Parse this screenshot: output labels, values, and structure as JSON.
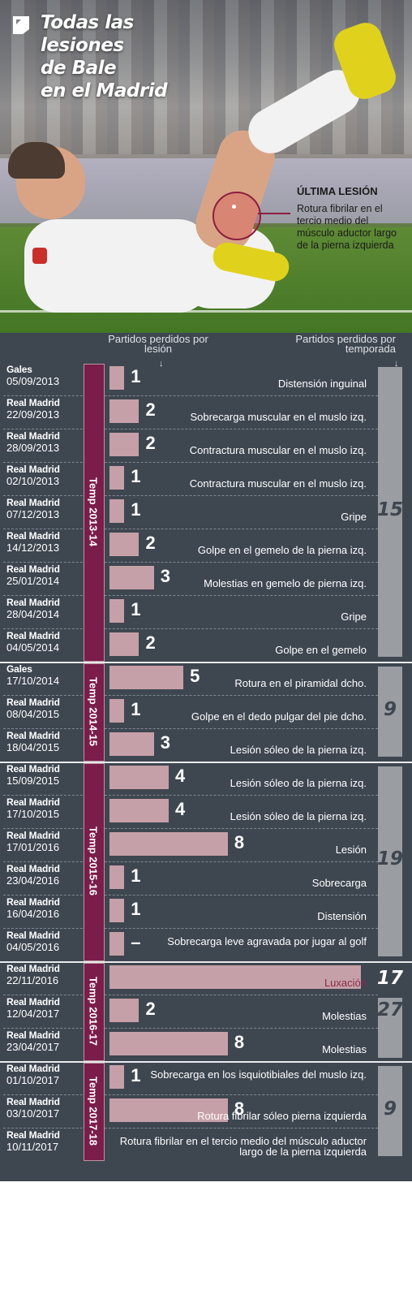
{
  "title": {
    "line1": "Todas las",
    "line2": "lesiones",
    "line3": "de Bale",
    "line4": "en el Madrid"
  },
  "last_injury": {
    "label": "ÚLTIMA LESIÓN",
    "description": "Rotura fibrilar en el tercio medio del músculo aductor largo de la pierna izquierda"
  },
  "headers": {
    "per_injury": "Partidos perdidos por lesión",
    "per_season": "Partidos perdidos por temporada",
    "arrow": "↓"
  },
  "colors": {
    "panel": "#3e4650",
    "bar": "#c6a0a8",
    "season_label_bg": "#7a1d4b",
    "season_total_bg": "#9a9da1"
  },
  "chart_data": {
    "type": "bar",
    "orientation": "horizontal",
    "title": "Todas las lesiones de Bale en el Madrid",
    "xlabel": "Partidos perdidos por lesión",
    "rows": [
      {
        "team": "Gales",
        "date": "05/09/2013",
        "value": 1,
        "label": "1",
        "injury": "Distensión inguinal",
        "season": "Temp 2013-14"
      },
      {
        "team": "Real Madrid",
        "date": "22/09/2013",
        "value": 2,
        "label": "2",
        "injury": "Sobrecarga muscular en el muslo izq.",
        "season": "Temp 2013-14"
      },
      {
        "team": "Real Madrid",
        "date": "28/09/2013",
        "value": 2,
        "label": "2",
        "injury": "Contractura muscular en el muslo izq.",
        "season": "Temp 2013-14"
      },
      {
        "team": "Real Madrid",
        "date": "02/10/2013",
        "value": 1,
        "label": "1",
        "injury": "Contractura muscular en el muslo izq.",
        "season": "Temp 2013-14"
      },
      {
        "team": "Real Madrid",
        "date": "07/12/2013",
        "value": 1,
        "label": "1",
        "injury": "Gripe",
        "season": "Temp 2013-14"
      },
      {
        "team": "Real Madrid",
        "date": "14/12/2013",
        "value": 2,
        "label": "2",
        "injury": "Golpe en el gemelo de la pierna izq.",
        "season": "Temp 2013-14"
      },
      {
        "team": "Real Madrid",
        "date": "25/01/2014",
        "value": 3,
        "label": "3",
        "injury": "Molestias en gemelo de pierna izq.",
        "season": "Temp 2013-14"
      },
      {
        "team": "Real Madrid",
        "date": "28/04/2014",
        "value": 1,
        "label": "1",
        "injury": "Gripe",
        "season": "Temp 2013-14"
      },
      {
        "team": "Real Madrid",
        "date": "04/05/2014",
        "value": 2,
        "label": "2",
        "injury": "Golpe en el gemelo",
        "season": "Temp 2013-14"
      },
      {
        "team": "Gales",
        "date": "17/10/2014",
        "value": 5,
        "label": "5",
        "injury": "Rotura en el piramidal dcho.",
        "season": "Temp 2014-15"
      },
      {
        "team": "Real Madrid",
        "date": "08/04/2015",
        "value": 1,
        "label": "1",
        "injury": "Golpe en el dedo pulgar del pie dcho.",
        "season": "Temp 2014-15"
      },
      {
        "team": "Real Madrid",
        "date": "18/04/2015",
        "value": 3,
        "label": "3",
        "injury": "Lesión sóleo de la pierna izq.",
        "season": "Temp 2014-15"
      },
      {
        "team": "Real Madrid",
        "date": "15/09/2015",
        "value": 4,
        "label": "4",
        "injury": "Lesión sóleo de la pierna izq.",
        "season": "Temp 2015-16"
      },
      {
        "team": "Real Madrid",
        "date": "17/10/2015",
        "value": 4,
        "label": "4",
        "injury": "Lesión sóleo de la pierna izq.",
        "season": "Temp 2015-16"
      },
      {
        "team": "Real Madrid",
        "date": "17/01/2016",
        "value": 8,
        "label": "8",
        "injury": "Lesión",
        "season": "Temp 2015-16"
      },
      {
        "team": "Real Madrid",
        "date": "23/04/2016",
        "value": 1,
        "label": "1",
        "injury": "Sobrecarga",
        "season": "Temp 2015-16"
      },
      {
        "team": "Real Madrid",
        "date": "16/04/2016",
        "value": 1,
        "label": "1",
        "injury": "Distensión",
        "season": "Temp 2015-16"
      },
      {
        "team": "Real Madrid",
        "date": "04/05/2016",
        "value": 1,
        "label": "–",
        "injury": "Sobrecarga leve agravada por jugar al golf",
        "season": "Temp 2015-16"
      },
      {
        "team": "Real Madrid",
        "date": "22/11/2016",
        "value": 17,
        "label": "",
        "injury": "Luxación",
        "season": "Temp 2016-17"
      },
      {
        "team": "Real Madrid",
        "date": "12/04/2017",
        "value": 2,
        "label": "2",
        "injury": "Molestias",
        "season": "Temp 2016-17"
      },
      {
        "team": "Real Madrid",
        "date": "23/04/2017",
        "value": 8,
        "label": "8",
        "injury": "Molestias",
        "season": "Temp 2016-17"
      },
      {
        "team": "Real Madrid",
        "date": "01/10/2017",
        "value": 1,
        "label": "1",
        "injury": "Sobrecarga en los isquiotibiales del muslo izq.",
        "season": "Temp 2017-18"
      },
      {
        "team": "Real Madrid",
        "date": "03/10/2017",
        "value": 8,
        "label": "8",
        "injury": "Rotura fibrilar sóleo pierna izquierda",
        "season": "Temp 2017-18"
      },
      {
        "team": "Real Madrid",
        "date": "10/11/2017",
        "value": null,
        "label": "",
        "injury": "Rotura fibrilar en el tercio medio del músculo aductor largo de la pierna izquierda",
        "season": "Temp 2017-18"
      }
    ],
    "seasons": [
      {
        "name": "Temp 2013-14",
        "total": 15
      },
      {
        "name": "Temp 2014-15",
        "total": 9
      },
      {
        "name": "Temp 2015-16",
        "total": 19
      },
      {
        "name": "Temp 2016-17",
        "total": 17,
        "total2": 27
      },
      {
        "name": "Temp 2017-18",
        "total": 9
      }
    ],
    "xlim": [
      0,
      17
    ]
  }
}
